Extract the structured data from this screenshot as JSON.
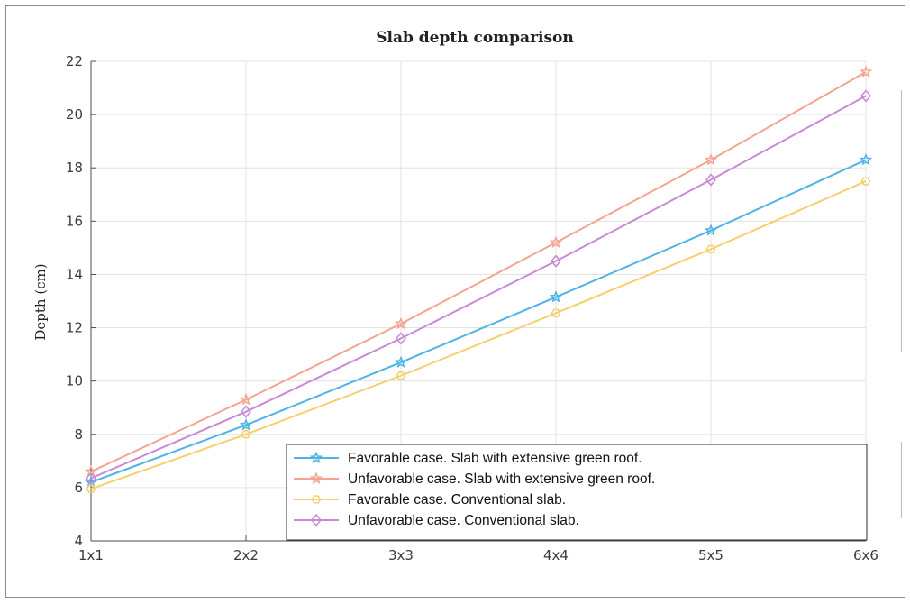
{
  "chart_data": {
    "type": "line",
    "title": "Slab depth comparison",
    "xlabel": "",
    "ylabel": "Depth (cm)",
    "categories": [
      "1x1",
      "2x2",
      "3x3",
      "4x4",
      "5x5",
      "6x6"
    ],
    "ylim": [
      4,
      22
    ],
    "yticks": [
      4,
      6,
      8,
      10,
      12,
      14,
      16,
      18,
      20,
      22
    ],
    "grid": true,
    "legend_position": "bottom-right",
    "series": [
      {
        "name": "Favorable case. Slab with extensive green roof.",
        "values": [
          6.2,
          8.35,
          10.7,
          13.15,
          15.65,
          18.3
        ],
        "color": "#4db3e6",
        "marker": "star"
      },
      {
        "name": "Unfavorable case. Slab with extensive green roof.",
        "values": [
          6.6,
          9.3,
          12.15,
          15.2,
          18.3,
          21.6
        ],
        "color": "#f4a491",
        "marker": "star"
      },
      {
        "name": "Favorable case. Conventional slab.",
        "values": [
          5.95,
          8.0,
          10.2,
          12.55,
          14.95,
          17.5
        ],
        "color": "#f7cf6c",
        "marker": "hexagon"
      },
      {
        "name": "Unfavorable case. Conventional slab.",
        "values": [
          6.35,
          8.85,
          11.6,
          14.5,
          17.55,
          20.7
        ],
        "color": "#c88ad6",
        "marker": "diamond"
      }
    ]
  }
}
